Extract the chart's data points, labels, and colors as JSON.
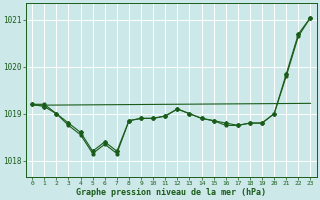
{
  "background_color": "#cce8e8",
  "grid_color": "#ffffff",
  "line_color": "#1a5c1a",
  "title": "Graphe pression niveau de la mer (hPa)",
  "xlim": [
    -0.5,
    23.5
  ],
  "ylim": [
    1017.65,
    1021.35
  ],
  "yticks": [
    1018,
    1019,
    1020,
    1021
  ],
  "xtick_labels": [
    "0",
    "1",
    "2",
    "3",
    "4",
    "5",
    "6",
    "7",
    "8",
    "9",
    "10",
    "11",
    "12",
    "13",
    "14",
    "15",
    "16",
    "17",
    "18",
    "19",
    "20",
    "21",
    "22",
    "23"
  ],
  "xticks": [
    0,
    1,
    2,
    3,
    4,
    5,
    6,
    7,
    8,
    9,
    10,
    11,
    12,
    13,
    14,
    15,
    16,
    17,
    18,
    19,
    20,
    21,
    22,
    23
  ],
  "line1_x": [
    0,
    1,
    2,
    3,
    4,
    5,
    6,
    7,
    8,
    9,
    10,
    11,
    12,
    13,
    14,
    15,
    16,
    17,
    18,
    19,
    20,
    21,
    22,
    23
  ],
  "line1_y": [
    1019.2,
    1019.2,
    1019.0,
    1018.75,
    1018.55,
    1018.15,
    1018.35,
    1018.15,
    1018.85,
    1018.9,
    1018.9,
    1018.95,
    1019.1,
    1019.0,
    1018.9,
    1018.85,
    1018.75,
    1018.75,
    1018.8,
    1018.8,
    1019.0,
    1019.8,
    1020.65,
    1021.05
  ],
  "line2_x": [
    0,
    1,
    2,
    3,
    4,
    5,
    6,
    7,
    8,
    9,
    10,
    11,
    12,
    13,
    14,
    15,
    16,
    17,
    18,
    19,
    20,
    21,
    22,
    23
  ],
  "line2_y": [
    1019.2,
    1019.15,
    1019.0,
    1018.8,
    1018.6,
    1018.2,
    1018.4,
    1018.2,
    1018.85,
    1018.9,
    1018.9,
    1018.95,
    1019.1,
    1019.0,
    1018.9,
    1018.85,
    1018.8,
    1018.75,
    1018.8,
    1018.8,
    1019.0,
    1019.85,
    1020.7,
    1021.05
  ],
  "trend_x": [
    0,
    23
  ],
  "trend_y": [
    1019.18,
    1019.22
  ]
}
